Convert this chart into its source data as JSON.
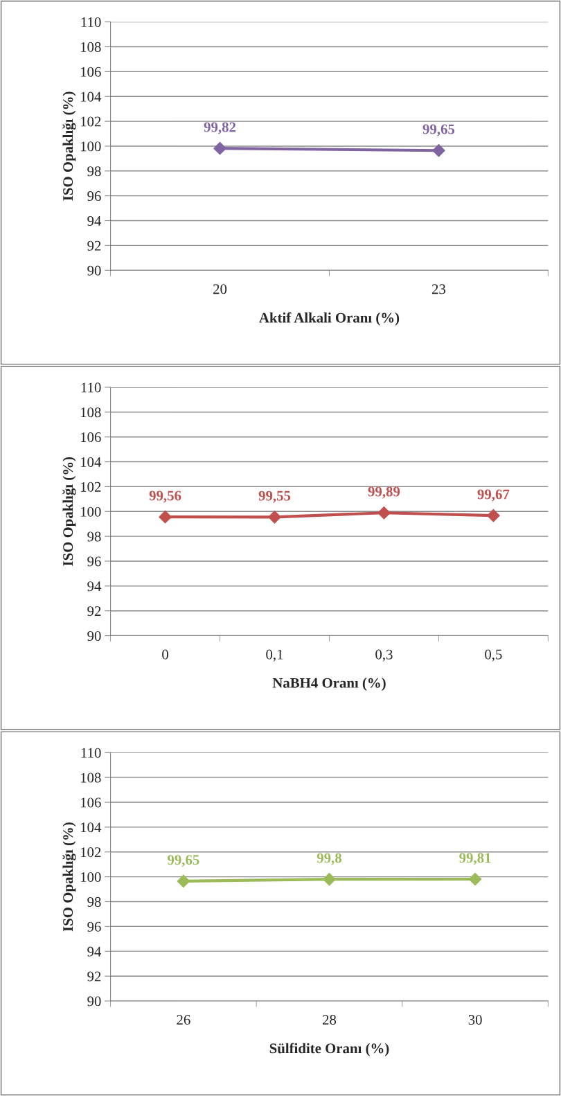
{
  "chart_data": [
    {
      "type": "line",
      "xlabel": "Aktif Alkali Oranı (%)",
      "ylabel": "ISO Opaklığı (%)",
      "categories": [
        "20",
        "23"
      ],
      "series": [
        {
          "color": "#8064a2",
          "values": [
            99.82,
            99.65
          ],
          "value_labels": [
            "99,82",
            "99,65"
          ]
        }
      ],
      "ylim": [
        90,
        110
      ],
      "yticks": [
        90,
        92,
        94,
        96,
        98,
        100,
        102,
        104,
        106,
        108,
        110
      ],
      "grid": "y",
      "marker": "diamond",
      "line_style": "solid"
    },
    {
      "type": "line",
      "xlabel": "NaBH4 Oranı (%)",
      "ylabel": "ISO Opaklığı (%)",
      "categories": [
        "0",
        "0,1",
        "0,3",
        "0,5"
      ],
      "series": [
        {
          "color": "#c0504d",
          "values": [
            99.56,
            99.55,
            99.89,
            99.67
          ],
          "value_labels": [
            "99,56",
            "99,55",
            "99,89",
            "99,67"
          ]
        }
      ],
      "ylim": [
        90,
        110
      ],
      "yticks": [
        90,
        92,
        94,
        96,
        98,
        100,
        102,
        104,
        106,
        108,
        110
      ],
      "grid": "y",
      "marker": "diamond",
      "line_style": "solid"
    },
    {
      "type": "line",
      "xlabel": "Sülfidite Oranı (%)",
      "ylabel": "ISO Opaklığı (%)",
      "categories": [
        "26",
        "28",
        "30"
      ],
      "series": [
        {
          "color": "#9bbb59",
          "values": [
            99.65,
            99.8,
            99.81
          ],
          "value_labels": [
            "99,65",
            "99,8",
            "99,81"
          ]
        }
      ],
      "ylim": [
        90,
        110
      ],
      "yticks": [
        90,
        92,
        94,
        96,
        98,
        100,
        102,
        104,
        106,
        108,
        110
      ],
      "grid": "y",
      "marker": "diamond",
      "line_style": "solid"
    }
  ]
}
